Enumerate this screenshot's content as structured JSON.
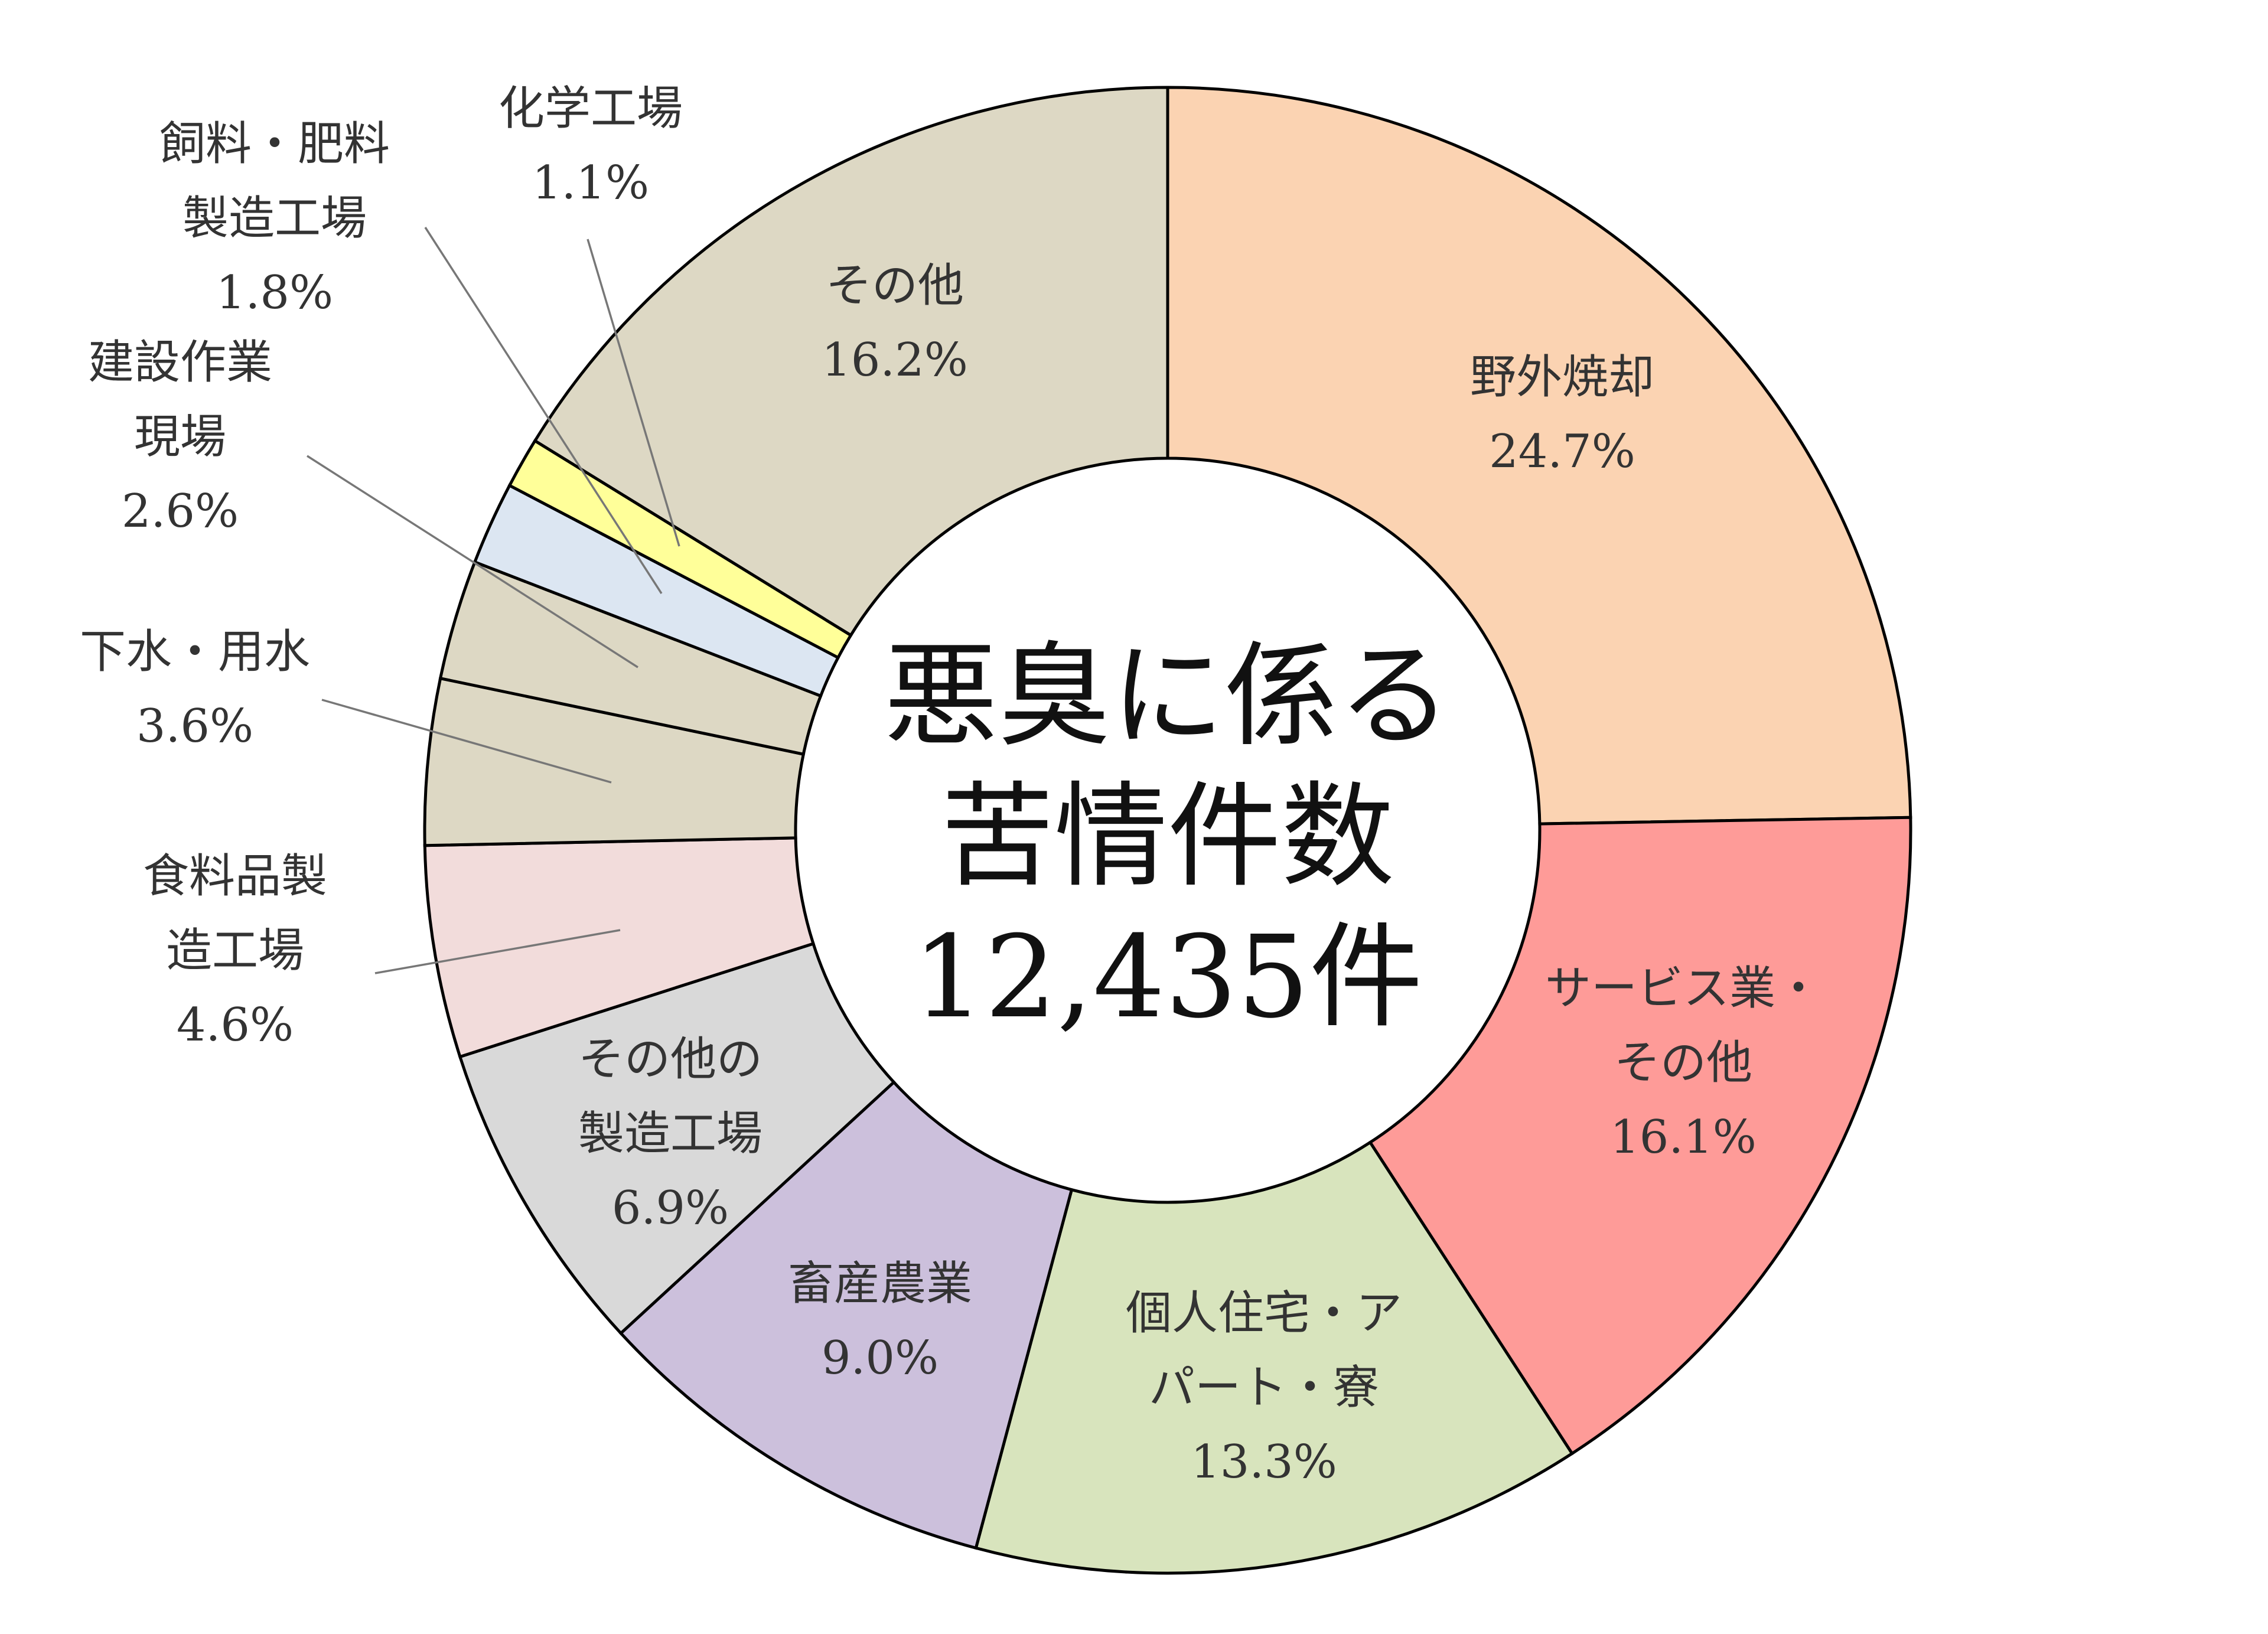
{
  "chart_data": {
    "type": "pie",
    "donut": true,
    "center_label": [
      "悪臭に係る",
      "苦情件数",
      "12,435件"
    ],
    "slices": [
      {
        "label": [
          "野外焼却"
        ],
        "value": 24.7,
        "value_label": "24.7%",
        "color": "#fbd3b2"
      },
      {
        "label": [
          "サービス業・",
          "その他"
        ],
        "value": 16.1,
        "value_label": "16.1%",
        "color": "#fe9b98"
      },
      {
        "label": [
          "個人住宅・ア",
          "パート・寮"
        ],
        "value": 13.3,
        "value_label": "13.3%",
        "color": "#d8e4bd"
      },
      {
        "label": [
          "畜産農業"
        ],
        "value": 9.0,
        "value_label": "9.0%",
        "color": "#ccc0dc"
      },
      {
        "label": [
          "その他の",
          "製造工場"
        ],
        "value": 6.9,
        "value_label": "6.9%",
        "color": "#d9d9d9"
      },
      {
        "label": [
          "食料品製",
          "造工場"
        ],
        "value": 4.6,
        "value_label": "4.6%",
        "color": "#f2dcdb"
      },
      {
        "label": [
          "下水・用水"
        ],
        "value": 3.6,
        "value_label": "3.6%",
        "color": "#ddd8c4"
      },
      {
        "label": [
          "建設作業",
          "現場"
        ],
        "value": 2.6,
        "value_label": "2.6%",
        "color": "#ddd8c4"
      },
      {
        "label": [
          "飼料・肥料",
          "製造工場"
        ],
        "value": 1.8,
        "value_label": "1.8%",
        "color": "#dce6f2"
      },
      {
        "label": [
          "化学工場"
        ],
        "value": 1.1,
        "value_label": "1.1%",
        "color": "#ffff99"
      },
      {
        "label": [
          "その他"
        ],
        "value": 16.2,
        "value_label": "16.2%",
        "color": "#ddd8c4"
      }
    ]
  }
}
